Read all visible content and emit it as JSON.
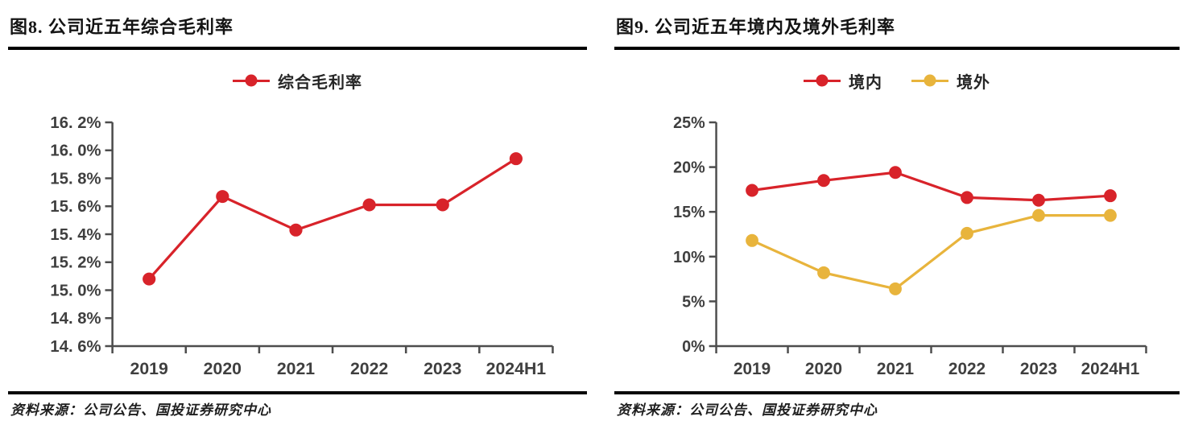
{
  "colors": {
    "accent_red": "#D8232A",
    "accent_gold": "#E8B43C",
    "axis": "#4D4D4D",
    "tick_text": "#3F3F3F"
  },
  "chart_data": [
    {
      "type": "line",
      "title": "图8. 公司近五年综合毛利率",
      "categories": [
        "2019",
        "2020",
        "2021",
        "2022",
        "2023",
        "2024H1"
      ],
      "series": [
        {
          "name": "综合毛利率",
          "color": "#D8232A",
          "values": [
            15.08,
            15.67,
            15.43,
            15.61,
            15.61,
            15.94
          ]
        }
      ],
      "ylim": [
        14.6,
        16.2
      ],
      "yticks": [
        14.6,
        14.8,
        15.0,
        15.2,
        15.4,
        15.6,
        15.8,
        16.0,
        16.2
      ],
      "ytick_labels": [
        "14. 6%",
        "14. 8%",
        "15. 0%",
        "15. 2%",
        "15. 4%",
        "15. 6%",
        "15. 8%",
        "16. 0%",
        "16. 2%"
      ],
      "xlabel": "",
      "ylabel": "",
      "grid": false,
      "legend_position": "top",
      "source": "资料来源：公司公告、国投证券研究中心"
    },
    {
      "type": "line",
      "title": "图9. 公司近五年境内及境外毛利率",
      "categories": [
        "2019",
        "2020",
        "2021",
        "2022",
        "2023",
        "2024H1"
      ],
      "series": [
        {
          "name": "境内",
          "color": "#D8232A",
          "values": [
            17.4,
            18.5,
            19.4,
            16.6,
            16.3,
            16.8
          ]
        },
        {
          "name": "境外",
          "color": "#E8B43C",
          "values": [
            11.8,
            8.2,
            6.4,
            12.6,
            14.6,
            14.6
          ]
        }
      ],
      "ylim": [
        0,
        25
      ],
      "yticks": [
        0,
        5,
        10,
        15,
        20,
        25
      ],
      "ytick_labels": [
        "0%",
        "5%",
        "10%",
        "15%",
        "20%",
        "25%"
      ],
      "xlabel": "",
      "ylabel": "",
      "grid": false,
      "legend_position": "top",
      "source": "资料来源：公司公告、国投证券研究中心"
    }
  ]
}
